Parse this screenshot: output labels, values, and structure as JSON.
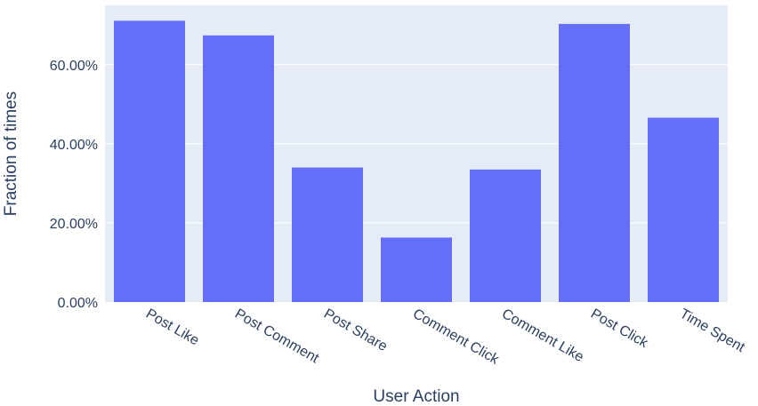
{
  "chart_data": {
    "type": "bar",
    "categories": [
      "Post Like",
      "Post Comment",
      "Post Share",
      "Comment Click",
      "Comment Like",
      "Post Click",
      "Time Spent"
    ],
    "series": [
      {
        "values": [
          0.711,
          0.674,
          0.34,
          0.163,
          0.335,
          0.703,
          0.466
        ]
      }
    ],
    "xlabel": "User Action",
    "ylabel": "Fraction of times",
    "ylim": [
      0,
      0.75
    ],
    "yticks": [
      0,
      0.2,
      0.4,
      0.6
    ],
    "ytick_labels": [
      "0.00%",
      "20.00%",
      "40.00%",
      "60.00%"
    ],
    "grid": true,
    "colors": {
      "bar": "#636efa",
      "plot_bg": "#e5ecf6",
      "grid": "#ffffff",
      "text": "#2a3f5f"
    }
  }
}
